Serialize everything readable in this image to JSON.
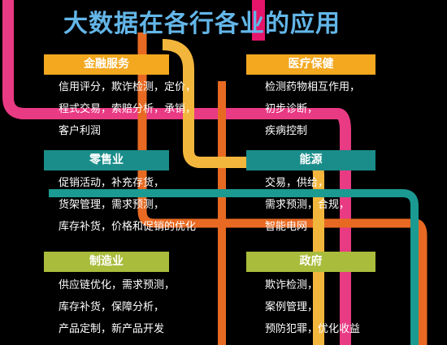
{
  "title": "大数据在各行各业的应用",
  "colors": {
    "background": "#000000",
    "title": "#63b6e8",
    "finance_label": "#f4a81f",
    "retail_label": "#1a8d8a",
    "manufacturing_label": "#a9bc3b",
    "line_pink": "#e93a84",
    "line_orange": "#e86a22",
    "line_yellow": "#f3b63c",
    "line_teal": "#1b9a91",
    "line_magenta": "#e4156a"
  },
  "sections": {
    "finance": {
      "label": "金融服务",
      "lines": [
        "信用评分，欺诈检测，定价，",
        "程式交易，索赔分析，承销，",
        "客户利润"
      ]
    },
    "healthcare": {
      "label": "医疗保健",
      "lines": [
        "检测药物相互作用，",
        "初步诊断，",
        "疾病控制"
      ]
    },
    "retail": {
      "label": "零售业",
      "lines": [
        "促销活动，补充存货，",
        "货架管理，需求预测，",
        "库存补货，价格和促销的优化"
      ]
    },
    "energy": {
      "label": "能源",
      "lines": [
        "交易，供给，",
        "需求预测，合规，",
        "智能电网"
      ]
    },
    "manufacturing": {
      "label": "制造业",
      "lines": [
        "供应链优化，需求预测，",
        "库存补货，保障分析，",
        "产品定制，新产品开发"
      ]
    },
    "government": {
      "label": "政府",
      "lines": [
        "欺诈检测，",
        "案例管理，",
        "预防犯罪，优化收益"
      ]
    }
  }
}
